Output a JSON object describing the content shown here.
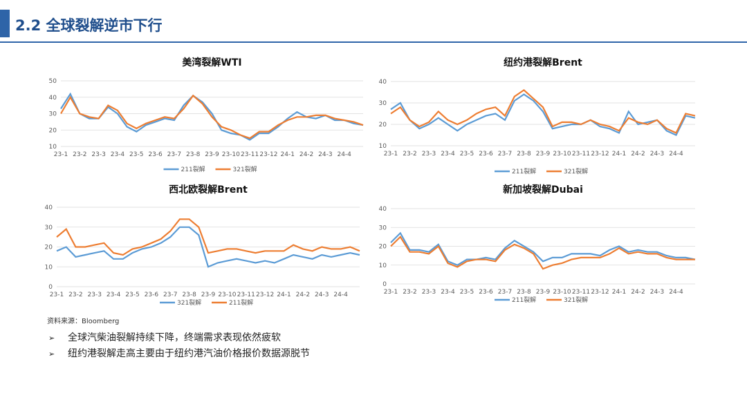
{
  "header": {
    "title": "2.2 全球裂解逆市下行"
  },
  "source": "资料来源：Bloomberg",
  "bullets": [
    "全球汽柴油裂解持续下降，终端需求表现依然疲软",
    "纽约港裂解走高主要由于纽约港汽油价格报价数据源脱节"
  ],
  "chart_data": [
    {
      "type": "line",
      "title": "美湾裂解WTI",
      "categories": [
        "23-1",
        null,
        "23-2",
        null,
        "23-3",
        null,
        "23-4",
        null,
        "23-5",
        null,
        "23-6",
        null,
        "23-7",
        null,
        "23-8",
        null,
        "23-9",
        null,
        "23-10",
        null,
        "23-11",
        null,
        "23-12",
        null,
        "24-1",
        null,
        "24-2",
        null,
        "24-3",
        null,
        "24-4",
        null,
        null
      ],
      "ylim": [
        10,
        50
      ],
      "yticks": [
        10,
        20,
        30,
        40,
        50
      ],
      "series": [
        {
          "name": "211裂解",
          "color": "#5b9bd5",
          "values": [
            33,
            42,
            30,
            27,
            27,
            34,
            30,
            22,
            19,
            23,
            25,
            27,
            26,
            35,
            41,
            37,
            30,
            20,
            18,
            17,
            14,
            18,
            18,
            22,
            27,
            31,
            28,
            27,
            29,
            26,
            26,
            24,
            23
          ]
        },
        {
          "name": "321裂解",
          "color": "#ed7d31",
          "values": [
            30,
            40,
            30,
            28,
            27,
            35,
            32,
            24,
            21,
            24,
            26,
            28,
            27,
            33,
            41,
            36,
            28,
            22,
            20,
            17,
            15,
            19,
            19,
            23,
            26,
            28,
            28,
            29,
            29,
            27,
            26,
            25,
            23
          ]
        }
      ]
    },
    {
      "type": "line",
      "title": "纽约港裂解Brent",
      "categories": [
        "23-1",
        null,
        "23-2",
        null,
        "23-3",
        null,
        "23-4",
        null,
        "23-5",
        null,
        "23-6",
        null,
        "23-7",
        null,
        "23-8",
        null,
        "23-9",
        null,
        "23-10",
        null,
        "23-11",
        null,
        "23-12",
        null,
        "24-1",
        null,
        "24-2",
        null,
        "24-3",
        null,
        "24-4",
        null,
        null
      ],
      "ylim": [
        10,
        40
      ],
      "yticks": [
        10,
        20,
        30,
        40
      ],
      "series": [
        {
          "name": "211裂解",
          "color": "#5b9bd5",
          "values": [
            27,
            30,
            22,
            18,
            20,
            23,
            20,
            17,
            20,
            22,
            24,
            25,
            22,
            31,
            34,
            31,
            26,
            18,
            19,
            20,
            20,
            22,
            19,
            18,
            16,
            26,
            20,
            21,
            22,
            17,
            15,
            24,
            23
          ]
        },
        {
          "name": "321裂解",
          "color": "#ed7d31",
          "values": [
            25,
            28,
            22,
            19,
            21,
            26,
            22,
            20,
            22,
            25,
            27,
            28,
            24,
            33,
            36,
            32,
            28,
            19,
            21,
            21,
            20,
            22,
            20,
            19,
            17,
            23,
            21,
            20,
            22,
            18,
            16,
            25,
            24
          ]
        }
      ]
    },
    {
      "type": "line",
      "title": "西北欧裂解Brent",
      "categories": [
        "23-1",
        null,
        "23-2",
        null,
        "23-3",
        null,
        "23-4",
        null,
        "23-5",
        null,
        "23-6",
        null,
        "23-7",
        null,
        "23-8",
        null,
        "23-9",
        null,
        "23-10",
        null,
        "23-11",
        null,
        "23-12",
        null,
        "24-1",
        null,
        "24-2",
        null,
        "24-3",
        null,
        "24-4",
        null,
        null
      ],
      "ylim": [
        0,
        40
      ],
      "yticks": [
        0,
        10,
        20,
        30,
        40
      ],
      "series": [
        {
          "name": "321裂解",
          "color": "#5b9bd5",
          "values": [
            18,
            20,
            15,
            16,
            17,
            18,
            14,
            14,
            17,
            19,
            20,
            22,
            25,
            30,
            30,
            26,
            10,
            12,
            13,
            14,
            13,
            12,
            13,
            12,
            14,
            16,
            15,
            14,
            16,
            15,
            16,
            17,
            16
          ]
        },
        {
          "name": "211裂解",
          "color": "#ed7d31",
          "values": [
            25,
            29,
            20,
            20,
            21,
            22,
            17,
            16,
            19,
            20,
            22,
            24,
            28,
            34,
            34,
            30,
            17,
            18,
            19,
            19,
            18,
            17,
            18,
            18,
            18,
            21,
            19,
            18,
            20,
            19,
            19,
            20,
            18
          ]
        }
      ]
    },
    {
      "type": "line",
      "title": "新加坡裂解Dubai",
      "categories": [
        "23-1",
        null,
        "23-2",
        null,
        "23-3",
        null,
        "23-4",
        null,
        "23-5",
        null,
        "23-6",
        null,
        "23-7",
        null,
        "23-8",
        null,
        "23-9",
        null,
        "23-10",
        null,
        "23-11",
        null,
        "23-12",
        null,
        "24-1",
        null,
        "24-2",
        null,
        "24-3",
        null,
        "24-4",
        null,
        null
      ],
      "ylim": [
        0,
        40
      ],
      "yticks": [
        0,
        10,
        20,
        30,
        40
      ],
      "series": [
        {
          "name": "211裂解",
          "color": "#5b9bd5",
          "values": [
            22,
            27,
            18,
            18,
            17,
            21,
            12,
            10,
            13,
            13,
            14,
            13,
            19,
            23,
            20,
            17,
            12,
            14,
            14,
            16,
            16,
            16,
            15,
            18,
            20,
            17,
            18,
            17,
            17,
            15,
            14,
            14,
            13
          ]
        },
        {
          "name": "321裂解",
          "color": "#ed7d31",
          "values": [
            20,
            25,
            17,
            17,
            16,
            20,
            11,
            9,
            12,
            13,
            13,
            12,
            18,
            21,
            19,
            16,
            8,
            10,
            11,
            13,
            14,
            14,
            14,
            16,
            19,
            16,
            17,
            16,
            16,
            14,
            13,
            13,
            13
          ]
        }
      ]
    }
  ]
}
